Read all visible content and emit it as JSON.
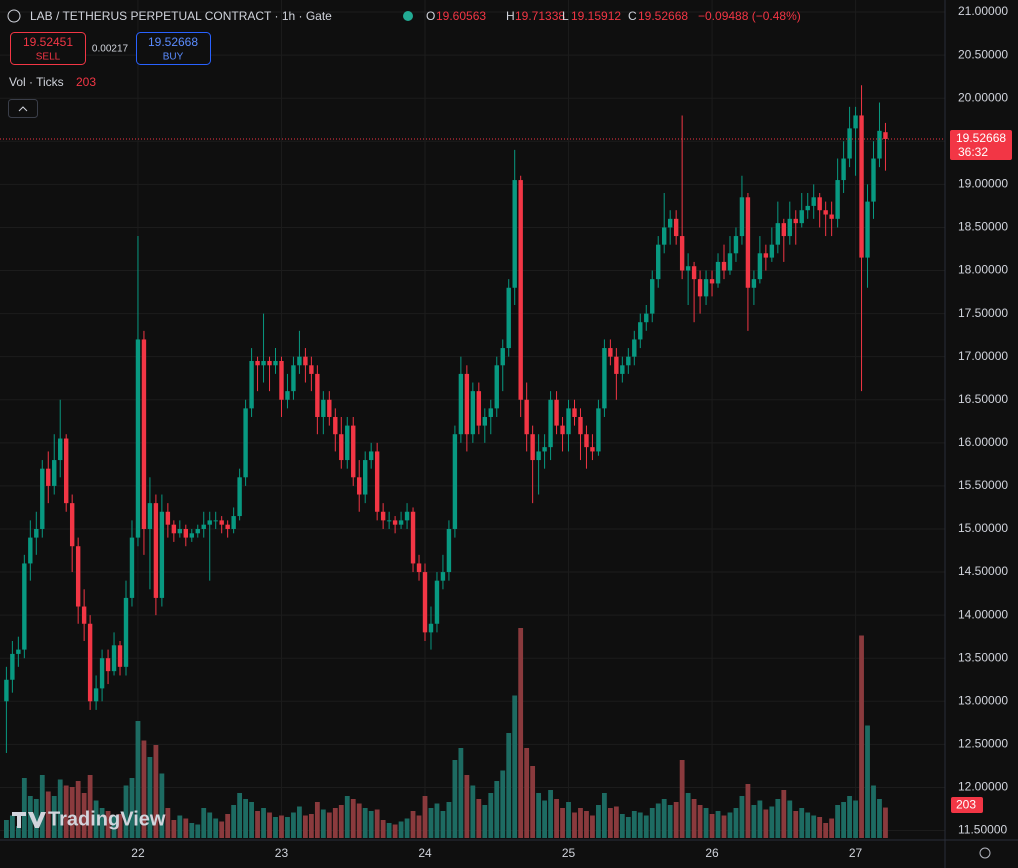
{
  "chart_data": {
    "type": "candlestick",
    "title": "LAB / TETHERUS PERPETUAL CONTRACT · 1h · Gate",
    "ohlc_letters": [
      "O",
      "H",
      "L",
      "C"
    ],
    "change": "−0.09488 (−0.48%)",
    "sell_price": "19.52451",
    "sell_label": "SELL",
    "spread": "0.00217",
    "buy_label": "BUY",
    "volume_title": "Vol · Ticks",
    "countdown": "36:32",
    "brand": "TradingView",
    "up_color": "#089981",
    "down_color": "#f23645",
    "volume_up_color": "#1d6b62",
    "volume_down_color": "#8a3a3d",
    "grid": true,
    "ylim": [
      11.39,
      21.14
    ],
    "yticks": [
      {
        "value": 11.5,
        "label": "11.50000"
      },
      {
        "value": 12,
        "label": "12.00000"
      },
      {
        "value": 12.5,
        "label": "12.50000"
      },
      {
        "value": 13,
        "label": "13.00000"
      },
      {
        "value": 13.5,
        "label": "13.50000"
      },
      {
        "value": 14,
        "label": "14.00000"
      },
      {
        "value": 14.5,
        "label": "14.50000"
      },
      {
        "value": 15,
        "label": "15.00000"
      },
      {
        "value": 15.5,
        "label": "15.50000"
      },
      {
        "value": 16,
        "label": "16.00000"
      },
      {
        "value": 16.5,
        "label": "16.50000"
      },
      {
        "value": 17,
        "label": "17.00000"
      },
      {
        "value": 17.5,
        "label": "17.50000"
      },
      {
        "value": 18,
        "label": "18.00000"
      },
      {
        "value": 18.5,
        "label": "18.50000"
      },
      {
        "value": 19,
        "label": "19.00000"
      },
      {
        "value": 19.5,
        "label": "19.50000"
      },
      {
        "value": 20,
        "label": "20.00000"
      },
      {
        "value": 20.5,
        "label": "20.50000"
      },
      {
        "value": 21,
        "label": "21.00000"
      }
    ],
    "categories": [
      null,
      null,
      null,
      null,
      null,
      null,
      null,
      null,
      null,
      null,
      null,
      null,
      null,
      null,
      null,
      null,
      null,
      null,
      null,
      null,
      null,
      null,
      "22",
      null,
      null,
      null,
      null,
      null,
      null,
      null,
      null,
      null,
      null,
      null,
      null,
      null,
      null,
      null,
      null,
      null,
      null,
      null,
      null,
      null,
      null,
      null,
      "23",
      null,
      null,
      null,
      null,
      null,
      null,
      null,
      null,
      null,
      null,
      null,
      null,
      null,
      null,
      null,
      null,
      null,
      null,
      null,
      null,
      null,
      null,
      null,
      "24",
      null,
      null,
      null,
      null,
      null,
      null,
      null,
      null,
      null,
      null,
      null,
      null,
      null,
      null,
      null,
      null,
      null,
      null,
      null,
      null,
      null,
      null,
      null,
      "25",
      null,
      null,
      null,
      null,
      null,
      null,
      null,
      null,
      null,
      null,
      null,
      null,
      null,
      null,
      null,
      null,
      null,
      null,
      null,
      null,
      null,
      null,
      null,
      "26",
      null,
      null,
      null,
      null,
      null,
      null,
      null,
      null,
      null,
      null,
      null,
      null,
      null,
      null,
      null,
      null,
      null,
      null,
      null,
      null,
      null,
      null,
      null,
      "27",
      null,
      null,
      null,
      null,
      null
    ],
    "open": [
      13.0,
      13.25,
      13.55,
      13.6,
      14.6,
      14.9,
      15.0,
      15.7,
      15.5,
      15.8,
      16.05,
      15.3,
      14.8,
      14.1,
      13.9,
      13.0,
      13.15,
      13.5,
      13.35,
      13.65,
      13.4,
      14.2,
      14.9,
      17.2,
      15.0,
      15.3,
      14.2,
      15.2,
      15.05,
      14.95,
      15.0,
      14.9,
      14.95,
      15.0,
      15.05,
      15.1,
      15.1,
      15.05,
      15.0,
      15.15,
      15.6,
      16.4,
      16.95,
      16.9,
      16.95,
      16.9,
      16.95,
      16.5,
      16.6,
      16.9,
      17.0,
      16.9,
      16.8,
      16.3,
      16.5,
      16.3,
      16.1,
      15.8,
      16.2,
      15.6,
      15.4,
      15.8,
      15.9,
      15.2,
      15.1,
      15.1,
      15.05,
      15.1,
      15.2,
      14.6,
      14.5,
      13.8,
      13.9,
      14.4,
      14.5,
      15.0,
      16.1,
      16.8,
      16.1,
      16.6,
      16.2,
      16.3,
      16.4,
      16.9,
      17.1,
      17.8,
      19.05,
      16.5,
      16.1,
      15.8,
      15.9,
      15.95,
      16.5,
      16.2,
      16.1,
      16.4,
      16.3,
      16.1,
      15.95,
      15.9,
      16.4,
      17.1,
      17.0,
      16.8,
      16.9,
      17.0,
      17.2,
      17.4,
      17.5,
      17.9,
      18.3,
      18.5,
      18.6,
      18.4,
      18.0,
      18.05,
      17.9,
      17.7,
      17.9,
      17.85,
      18.1,
      18.0,
      18.2,
      18.4,
      18.85,
      17.8,
      17.9,
      18.2,
      18.15,
      18.3,
      18.55,
      18.4,
      18.6,
      18.55,
      18.7,
      18.75,
      18.85,
      18.7,
      18.65,
      18.6,
      19.05,
      19.3,
      19.65,
      19.8,
      18.15,
      18.8,
      19.3,
      19.60563
    ],
    "high": [
      13.4,
      13.7,
      13.75,
      14.7,
      15.1,
      15.2,
      15.8,
      15.9,
      16.1,
      16.5,
      16.1,
      15.4,
      14.9,
      14.3,
      14.0,
      13.3,
      13.6,
      13.6,
      13.8,
      13.7,
      14.4,
      15.1,
      18.4,
      17.3,
      15.6,
      15.4,
      15.4,
      15.3,
      15.1,
      15.1,
      15.05,
      15.0,
      15.05,
      15.2,
      15.2,
      15.2,
      15.15,
      15.1,
      15.25,
      15.7,
      16.5,
      17.1,
      17.0,
      17.5,
      17.0,
      17.1,
      17.0,
      16.8,
      17.0,
      17.3,
      17.1,
      17.0,
      16.9,
      16.6,
      16.6,
      16.4,
      16.3,
      16.3,
      16.3,
      15.8,
      15.9,
      16.0,
      16.0,
      15.3,
      15.2,
      15.15,
      15.2,
      15.3,
      15.25,
      14.7,
      14.6,
      14.1,
      14.5,
      14.7,
      15.1,
      16.2,
      17.0,
      16.9,
      16.7,
      16.7,
      16.4,
      16.5,
      17.0,
      17.2,
      17.9,
      19.4,
      19.1,
      16.7,
      16.2,
      16.1,
      16.1,
      16.6,
      16.6,
      16.3,
      16.5,
      16.5,
      16.4,
      16.2,
      16.1,
      16.5,
      17.2,
      17.2,
      17.1,
      17.0,
      17.1,
      17.3,
      17.5,
      17.6,
      18.0,
      18.4,
      18.9,
      18.7,
      18.7,
      19.8,
      18.2,
      18.1,
      18.0,
      18.0,
      18.0,
      18.2,
      18.3,
      18.4,
      18.5,
      19.1,
      18.9,
      18.0,
      18.4,
      18.3,
      18.5,
      18.8,
      18.6,
      18.8,
      18.7,
      18.9,
      18.9,
      19.0,
      18.9,
      18.8,
      18.8,
      19.3,
      19.5,
      19.9,
      19.9,
      20.15,
      19.0,
      19.5,
      19.95,
      19.71338
    ],
    "low": [
      12.4,
      13.1,
      13.4,
      13.5,
      14.4,
      14.7,
      14.9,
      15.3,
      15.4,
      15.6,
      15.2,
      14.5,
      13.9,
      13.7,
      12.9,
      12.9,
      13.0,
      13.2,
      13.3,
      13.3,
      13.3,
      14.1,
      14.8,
      14.7,
      14.3,
      14.0,
      14.1,
      14.9,
      14.85,
      14.9,
      14.8,
      14.85,
      14.9,
      14.9,
      14.4,
      15.0,
      14.95,
      14.9,
      14.95,
      15.1,
      15.5,
      16.3,
      16.6,
      16.7,
      16.6,
      16.8,
      16.3,
      16.4,
      16.5,
      16.8,
      16.7,
      16.6,
      16.1,
      16.1,
      16.2,
      15.9,
      15.7,
      15.7,
      15.5,
      15.2,
      15.3,
      15.7,
      15.1,
      15.0,
      15.0,
      14.95,
      15.0,
      15.0,
      14.5,
      14.4,
      13.7,
      13.6,
      13.8,
      14.3,
      14.4,
      14.9,
      16.0,
      15.9,
      16.0,
      16.1,
      16.0,
      16.1,
      16.3,
      16.6,
      17.0,
      17.6,
      16.3,
      15.9,
      15.3,
      15.4,
      15.7,
      15.8,
      16.1,
      15.9,
      15.9,
      16.2,
      15.8,
      15.7,
      15.8,
      15.85,
      16.3,
      16.9,
      16.5,
      16.7,
      16.8,
      16.9,
      17.1,
      17.3,
      17.4,
      17.8,
      18.2,
      18.3,
      18.3,
      17.9,
      17.6,
      17.4,
      17.5,
      17.6,
      17.7,
      17.8,
      17.9,
      17.95,
      18.1,
      18.3,
      17.3,
      17.6,
      17.85,
      18.0,
      18.1,
      18.2,
      18.1,
      18.3,
      18.3,
      18.5,
      18.6,
      18.6,
      18.5,
      18.4,
      18.4,
      18.5,
      18.9,
      19.2,
      19.1,
      16.6,
      17.8,
      18.6,
      19.2,
      19.15912
    ],
    "close": [
      13.25,
      13.55,
      13.6,
      14.6,
      14.9,
      15.0,
      15.7,
      15.5,
      15.8,
      16.05,
      15.3,
      14.8,
      14.1,
      13.9,
      13.0,
      13.15,
      13.5,
      13.35,
      13.65,
      13.4,
      14.2,
      14.9,
      17.2,
      15.0,
      15.3,
      14.2,
      15.2,
      15.05,
      14.95,
      15.0,
      14.9,
      14.95,
      15.0,
      15.05,
      15.1,
      15.1,
      15.05,
      15.0,
      15.15,
      15.6,
      16.4,
      16.95,
      16.9,
      16.95,
      16.9,
      16.95,
      16.5,
      16.6,
      16.9,
      17.0,
      16.9,
      16.8,
      16.3,
      16.5,
      16.3,
      16.1,
      15.8,
      16.2,
      15.6,
      15.4,
      15.8,
      15.9,
      15.2,
      15.1,
      15.1,
      15.05,
      15.1,
      15.2,
      14.6,
      14.5,
      13.8,
      13.9,
      14.4,
      14.5,
      15.0,
      16.1,
      16.8,
      16.1,
      16.6,
      16.2,
      16.3,
      16.4,
      16.9,
      17.1,
      17.8,
      19.05,
      16.5,
      16.1,
      15.8,
      15.9,
      15.95,
      16.5,
      16.2,
      16.1,
      16.4,
      16.3,
      16.1,
      15.95,
      15.9,
      16.4,
      17.1,
      17.0,
      16.8,
      16.9,
      17.0,
      17.2,
      17.4,
      17.5,
      17.9,
      18.3,
      18.5,
      18.6,
      18.4,
      18.0,
      18.05,
      17.9,
      17.7,
      17.9,
      17.85,
      18.1,
      18.0,
      18.2,
      18.4,
      18.85,
      17.8,
      17.9,
      18.2,
      18.15,
      18.3,
      18.55,
      18.4,
      18.6,
      18.55,
      18.7,
      18.75,
      18.85,
      18.7,
      18.65,
      18.6,
      19.05,
      19.3,
      19.65,
      19.8,
      18.15,
      18.8,
      19.3,
      19.62156,
      19.52668
    ],
    "volume": [
      120,
      150,
      80,
      400,
      280,
      260,
      420,
      310,
      280,
      390,
      350,
      340,
      380,
      300,
      420,
      250,
      200,
      180,
      150,
      160,
      350,
      400,
      780,
      650,
      540,
      620,
      430,
      200,
      120,
      150,
      130,
      100,
      90,
      200,
      170,
      130,
      110,
      160,
      220,
      300,
      260,
      240,
      180,
      200,
      170,
      140,
      150,
      140,
      170,
      210,
      150,
      160,
      240,
      190,
      170,
      200,
      220,
      280,
      260,
      230,
      200,
      180,
      190,
      120,
      100,
      90,
      110,
      130,
      180,
      150,
      280,
      200,
      230,
      180,
      240,
      520,
      600,
      420,
      350,
      260,
      220,
      300,
      380,
      450,
      700,
      950,
      1400,
      600,
      480,
      300,
      250,
      320,
      260,
      200,
      240,
      170,
      200,
      180,
      150,
      220,
      300,
      200,
      210,
      160,
      140,
      180,
      170,
      150,
      200,
      230,
      260,
      220,
      240,
      520,
      300,
      260,
      220,
      200,
      160,
      180,
      150,
      170,
      200,
      280,
      360,
      220,
      250,
      190,
      210,
      260,
      320,
      250,
      180,
      200,
      170,
      150,
      140,
      100,
      130,
      220,
      240,
      280,
      250,
      1350,
      750,
      350,
      260,
      203
    ]
  }
}
